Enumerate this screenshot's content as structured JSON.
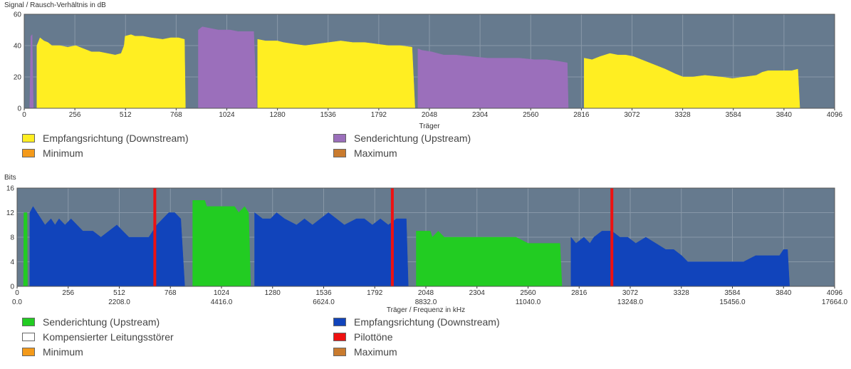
{
  "chart_data": [
    {
      "type": "area",
      "ylabel": "Signal / Rausch-Verhältnis in dB",
      "xlabel": "Träger",
      "xlim": [
        0,
        4096
      ],
      "ylim": [
        0,
        60
      ],
      "x_ticks": [
        "0",
        "256",
        "512",
        "768",
        "1024",
        "1280",
        "1536",
        "1792",
        "2048",
        "2304",
        "2560",
        "2816",
        "3072",
        "3328",
        "3584",
        "3840",
        "4096"
      ],
      "y_ticks": [
        "0",
        "20",
        "40",
        "60"
      ],
      "series": [
        {
          "name": "Empfangsrichtung (Downstream)",
          "color": "#ffee22",
          "segments": [
            [
              [
                64,
                0
              ],
              [
                64,
                40
              ],
              [
                80,
                45
              ],
              [
                100,
                43
              ],
              [
                120,
                42
              ],
              [
                140,
                40
              ],
              [
                180,
                40
              ],
              [
                220,
                39
              ],
              [
                260,
                40
              ],
              [
                300,
                38
              ],
              [
                340,
                36
              ],
              [
                380,
                36
              ],
              [
                420,
                35
              ],
              [
                460,
                34
              ],
              [
                490,
                35
              ],
              [
                505,
                40
              ],
              [
                510,
                46
              ],
              [
                540,
                47
              ],
              [
                560,
                46
              ],
              [
                600,
                46
              ],
              [
                640,
                45
              ],
              [
                700,
                44
              ],
              [
                740,
                45
              ],
              [
                780,
                45
              ],
              [
                810,
                44
              ],
              [
                815,
                0
              ]
            ],
            [
              [
                1180,
                0
              ],
              [
                1180,
                44
              ],
              [
                1220,
                43
              ],
              [
                1280,
                43
              ],
              [
                1310,
                42
              ],
              [
                1360,
                41
              ],
              [
                1420,
                40
              ],
              [
                1480,
                41
              ],
              [
                1540,
                42
              ],
              [
                1600,
                43
              ],
              [
                1660,
                42
              ],
              [
                1720,
                42
              ],
              [
                1780,
                41
              ],
              [
                1840,
                40
              ],
              [
                1900,
                40
              ],
              [
                1960,
                39
              ],
              [
                1975,
                0
              ]
            ],
            [
              [
                2830,
                0
              ],
              [
                2830,
                32
              ],
              [
                2870,
                31
              ],
              [
                2910,
                33
              ],
              [
                2960,
                35
              ],
              [
                3000,
                34
              ],
              [
                3040,
                34
              ],
              [
                3080,
                33
              ],
              [
                3120,
                31
              ],
              [
                3180,
                28
              ],
              [
                3240,
                25
              ],
              [
                3290,
                22
              ],
              [
                3330,
                20
              ],
              [
                3380,
                20
              ],
              [
                3440,
                21
              ],
              [
                3520,
                20
              ],
              [
                3580,
                19
              ],
              [
                3640,
                20
              ],
              [
                3700,
                21
              ],
              [
                3730,
                23
              ],
              [
                3760,
                24
              ],
              [
                3880,
                24
              ],
              [
                3910,
                25
              ],
              [
                3920,
                0
              ]
            ]
          ]
        },
        {
          "name": "Senderichtung (Upstream)",
          "color": "#9b6fbb",
          "segments": [
            [
              [
                28,
                0
              ],
              [
                34,
                46
              ],
              [
                40,
                47
              ],
              [
                46,
                0
              ]
            ],
            [
              [
                880,
                0
              ],
              [
                880,
                50
              ],
              [
                900,
                52
              ],
              [
                940,
                51
              ],
              [
                980,
                50
              ],
              [
                1040,
                50
              ],
              [
                1080,
                49
              ],
              [
                1120,
                49
              ],
              [
                1160,
                49
              ],
              [
                1175,
                0
              ]
            ],
            [
              [
                1990,
                0
              ],
              [
                1990,
                38
              ],
              [
                2010,
                37
              ],
              [
                2060,
                36
              ],
              [
                2120,
                34
              ],
              [
                2180,
                34
              ],
              [
                2260,
                33
              ],
              [
                2340,
                32
              ],
              [
                2420,
                32
              ],
              [
                2500,
                32
              ],
              [
                2580,
                31
              ],
              [
                2640,
                31
              ],
              [
                2700,
                30
              ],
              [
                2745,
                29
              ],
              [
                2750,
                0
              ]
            ]
          ]
        },
        {
          "name": "Minimum",
          "color": "#f49a1a",
          "segments": []
        },
        {
          "name": "Maximum",
          "color": "#c97b2e",
          "segments": []
        }
      ]
    },
    {
      "type": "area",
      "ylabel": "Bits",
      "xlabel": "Träger / Frequenz in kHz",
      "xlim": [
        0,
        4096
      ],
      "ylim": [
        0,
        16
      ],
      "x_ticks": [
        "0",
        "256",
        "512",
        "768",
        "1024",
        "1280",
        "1536",
        "1792",
        "2048",
        "2304",
        "2560",
        "2816",
        "3072",
        "3328",
        "3584",
        "3840",
        "4096"
      ],
      "x_ticks_khz": [
        "0.0",
        "2208.0",
        "4416.0",
        "6624.0",
        "8832.0",
        "11040.0",
        "13248.0",
        "15456.0",
        "17664.0"
      ],
      "y_ticks": [
        "0",
        "4",
        "8",
        "12",
        "16"
      ],
      "pilot_tones": [
        690,
        1880,
        2980
      ],
      "series": [
        {
          "name": "Senderichtung (Upstream)",
          "color": "#22cc22",
          "segments": [
            [
              [
                32,
                0
              ],
              [
                34,
                12
              ],
              [
                50,
                12
              ],
              [
                52,
                0
              ]
            ],
            [
              [
                880,
                0
              ],
              [
                880,
                14
              ],
              [
                940,
                14
              ],
              [
                950,
                13
              ],
              [
                1090,
                13
              ],
              [
                1110,
                12
              ],
              [
                1140,
                13
              ],
              [
                1160,
                12
              ],
              [
                1170,
                0
              ]
            ],
            [
              [
                2000,
                0
              ],
              [
                2000,
                9
              ],
              [
                2070,
                9
              ],
              [
                2080,
                8
              ],
              [
                2110,
                9
              ],
              [
                2140,
                8
              ],
              [
                2280,
                8
              ],
              [
                2500,
                8
              ],
              [
                2560,
                7
              ],
              [
                2720,
                7
              ],
              [
                2730,
                0
              ]
            ]
          ]
        },
        {
          "name": "Empfangsrichtung (Downstream)",
          "color": "#1144bb",
          "segments": [
            [
              [
                64,
                0
              ],
              [
                64,
                12
              ],
              [
                80,
                13
              ],
              [
                100,
                12
              ],
              [
                120,
                11
              ],
              [
                140,
                10
              ],
              [
                170,
                11
              ],
              [
                190,
                10
              ],
              [
                210,
                11
              ],
              [
                240,
                10
              ],
              [
                270,
                11
              ],
              [
                300,
                10
              ],
              [
                330,
                9
              ],
              [
                380,
                9
              ],
              [
                420,
                8
              ],
              [
                460,
                9
              ],
              [
                500,
                10
              ],
              [
                530,
                9
              ],
              [
                560,
                8
              ],
              [
                620,
                8
              ],
              [
                660,
                8
              ],
              [
                700,
                10
              ],
              [
                730,
                11
              ],
              [
                760,
                12
              ],
              [
                790,
                12
              ],
              [
                820,
                11
              ],
              [
                840,
                0
              ]
            ],
            [
              [
                1190,
                0
              ],
              [
                1190,
                12
              ],
              [
                1230,
                11
              ],
              [
                1270,
                11
              ],
              [
                1300,
                12
              ],
              [
                1340,
                11
              ],
              [
                1400,
                10
              ],
              [
                1440,
                11
              ],
              [
                1480,
                10
              ],
              [
                1520,
                11
              ],
              [
                1560,
                12
              ],
              [
                1600,
                11
              ],
              [
                1640,
                10
              ],
              [
                1700,
                11
              ],
              [
                1740,
                11
              ],
              [
                1780,
                10
              ],
              [
                1820,
                11
              ],
              [
                1860,
                10
              ],
              [
                1900,
                11
              ],
              [
                1950,
                11
              ],
              [
                1960,
                0
              ]
            ],
            [
              [
                2775,
                0
              ],
              [
                2775,
                8
              ],
              [
                2800,
                7
              ],
              [
                2840,
                8
              ],
              [
                2870,
                7
              ],
              [
                2890,
                8
              ],
              [
                2930,
                9
              ],
              [
                2980,
                9
              ],
              [
                3020,
                8
              ],
              [
                3060,
                8
              ],
              [
                3100,
                7
              ],
              [
                3150,
                8
              ],
              [
                3200,
                7
              ],
              [
                3250,
                6
              ],
              [
                3290,
                6
              ],
              [
                3330,
                5
              ],
              [
                3360,
                4
              ],
              [
                3500,
                4
              ],
              [
                3580,
                4
              ],
              [
                3640,
                4
              ],
              [
                3700,
                5
              ],
              [
                3760,
                5
              ],
              [
                3820,
                5
              ],
              [
                3840,
                6
              ],
              [
                3860,
                6
              ],
              [
                3870,
                0
              ]
            ]
          ]
        },
        {
          "name": "Kompensierter Leitungsstörer",
          "color": "#ffffff",
          "segments": []
        },
        {
          "name": "Pilottöne",
          "color": "#ee1111",
          "segments": []
        },
        {
          "name": "Minimum",
          "color": "#f49a1a",
          "segments": []
        },
        {
          "name": "Maximum",
          "color": "#c97b2e",
          "segments": []
        }
      ]
    }
  ],
  "legend1": [
    {
      "label": "Empfangsrichtung (Downstream)",
      "color": "#ffee22"
    },
    {
      "label": "Senderichtung (Upstream)",
      "color": "#9b6fbb"
    },
    {
      "label": "Minimum",
      "color": "#f49a1a"
    },
    {
      "label": "Maximum",
      "color": "#c97b2e"
    }
  ],
  "legend2": [
    {
      "label": "Senderichtung (Upstream)",
      "color": "#22cc22"
    },
    {
      "label": "Empfangsrichtung (Downstream)",
      "color": "#1144bb"
    },
    {
      "label": "Kompensierter Leitungsstörer",
      "color": "#ffffff"
    },
    {
      "label": "Pilottöne",
      "color": "#ee1111"
    },
    {
      "label": "Minimum",
      "color": "#f49a1a"
    },
    {
      "label": "Maximum",
      "color": "#c97b2e"
    }
  ],
  "colors": {
    "plot_bg": "#667a8e",
    "grid": "#8898a8"
  }
}
